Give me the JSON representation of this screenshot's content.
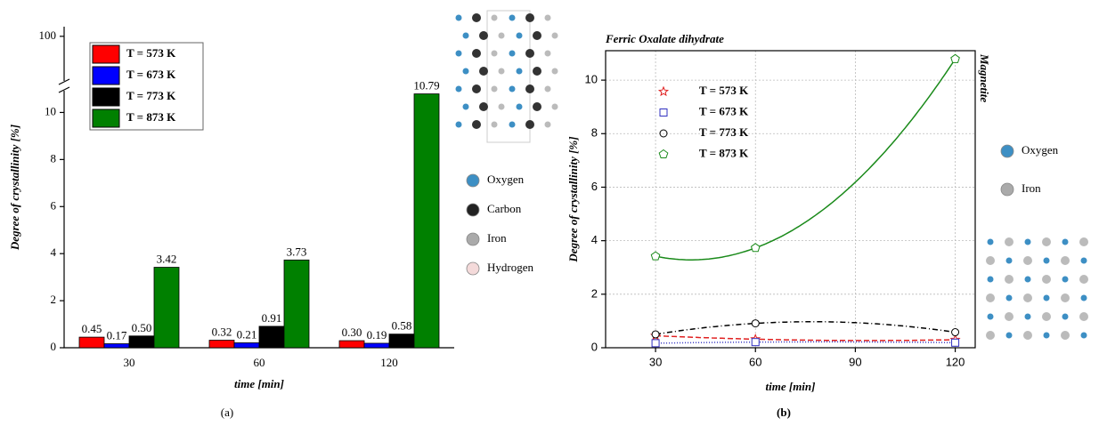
{
  "chart_data": [
    {
      "type": "bar",
      "categories": [
        "30",
        "60",
        "120"
      ],
      "series": [
        {
          "name": "T = 573 K",
          "color": "#ff0000",
          "values": [
            0.45,
            0.32,
            0.3
          ],
          "value_labels": [
            "0.45",
            "0.32",
            "0.30"
          ]
        },
        {
          "name": "T = 673 K",
          "color": "#0000ff",
          "values": [
            0.17,
            0.21,
            0.19
          ],
          "value_labels": [
            "0.17",
            "0.21",
            "0.19"
          ]
        },
        {
          "name": "T = 773 K",
          "color": "#000000",
          "values": [
            0.5,
            0.91,
            0.58
          ],
          "value_labels": [
            "0.50",
            "0.91",
            "0.58"
          ]
        },
        {
          "name": "T = 873 K",
          "color": "#008000",
          "values": [
            3.42,
            3.73,
            10.79
          ],
          "value_labels": [
            "3.42",
            "3.73",
            "10.79"
          ]
        }
      ],
      "ylim": [
        0,
        11
      ],
      "yticks": [
        0,
        2,
        4,
        6,
        8,
        10
      ],
      "ylim_upper": [
        95,
        101
      ],
      "yticks_upper": [
        100
      ],
      "xlabel": "time [min]",
      "ylabel": "Degree of crystallinity [%]",
      "element_legend": [
        {
          "name": "Oxygen",
          "color": "#3d8fc4"
        },
        {
          "name": "Carbon",
          "color": "#222222"
        },
        {
          "name": "Iron",
          "color": "#aaaaaa"
        },
        {
          "name": "Hydrogen",
          "color": "#f4dada"
        }
      ],
      "caption": "(a)"
    },
    {
      "type": "scatter",
      "x": [
        30,
        60,
        120
      ],
      "series": [
        {
          "name": "T = 573 K",
          "color": "#e02020",
          "marker": "star",
          "dash": "6 3",
          "values": [
            0.45,
            0.32,
            0.3
          ]
        },
        {
          "name": "T = 673 K",
          "color": "#3030c0",
          "marker": "square",
          "dash": "1 2",
          "values": [
            0.17,
            0.21,
            0.19
          ]
        },
        {
          "name": "T = 773 K",
          "color": "#000000",
          "marker": "circle",
          "dash": "6 3 1 3",
          "values": [
            0.5,
            0.91,
            0.58
          ]
        },
        {
          "name": "T = 873 K",
          "color": "#1a8a1a",
          "marker": "pentagon",
          "dash": "",
          "values": [
            3.42,
            3.73,
            10.79
          ]
        }
      ],
      "xlim": [
        15,
        126
      ],
      "xticks": [
        30,
        60,
        90,
        120
      ],
      "ylim": [
        0,
        11.1
      ],
      "yticks": [
        0,
        2,
        4,
        6,
        8,
        10
      ],
      "grid": true,
      "xlabel": "time [min]",
      "ylabel": "Degree of crystallinity [%]",
      "title": "Ferric Oxalate dihydrate",
      "annotation": "Magnetite",
      "element_legend": [
        {
          "name": "Oxygen",
          "color": "#3d8fc4"
        },
        {
          "name": "Iron",
          "color": "#aaaaaa"
        }
      ],
      "caption": "(b)"
    }
  ]
}
